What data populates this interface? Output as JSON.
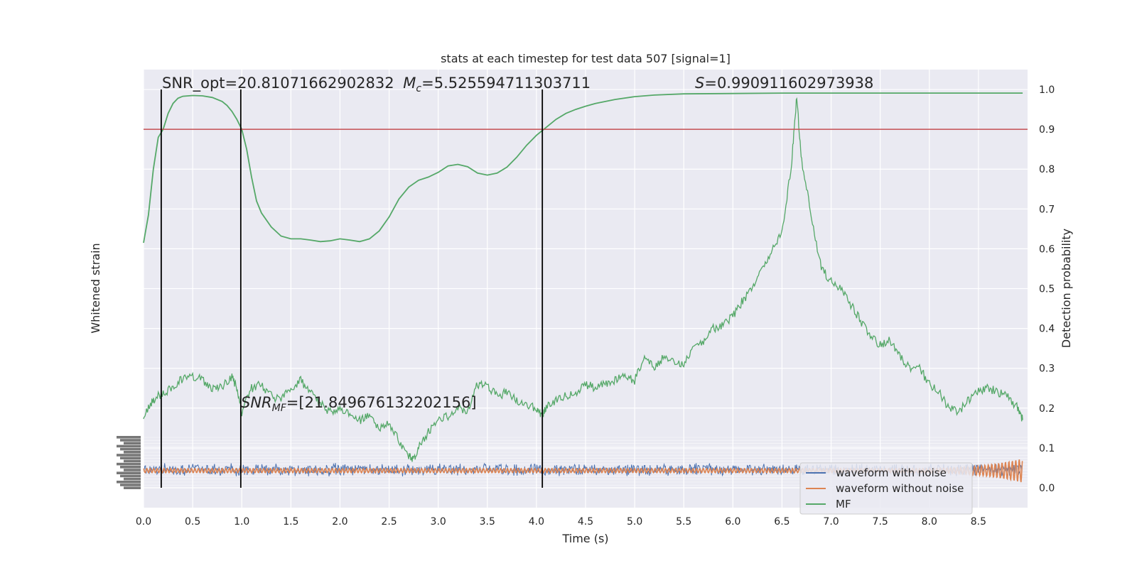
{
  "chart_data": {
    "type": "line",
    "title": "stats at each timestep for test data 507 [signal=1]",
    "xlabel": "Time (s)",
    "ylabel_left": "Whitened strain",
    "ylabel_right": "Detection probability",
    "xlim": [
      0.0,
      9.0
    ],
    "ylim_right": [
      -0.05,
      1.05
    ],
    "x_ticks": [
      "0.0",
      "0.5",
      "1.0",
      "1.5",
      "2.0",
      "2.5",
      "3.0",
      "3.5",
      "4.0",
      "4.5",
      "5.0",
      "5.5",
      "6.0",
      "6.5",
      "7.0",
      "7.5",
      "8.0",
      "8.5"
    ],
    "y_ticks_right": [
      "0.0",
      "0.1",
      "0.2",
      "0.3",
      "0.4",
      "0.5",
      "0.6",
      "0.7",
      "0.8",
      "0.9",
      "1.0"
    ],
    "threshold": 0.9,
    "vertical_lines_x": [
      0.18,
      0.99,
      4.06
    ],
    "annotations": {
      "snr_opt": "SNR_opt=20.81071662902832",
      "mc_prefix": "M",
      "mc_sub": "c",
      "mc_value": "=5.525594711303711",
      "s_prefix": "S",
      "s_value": "=0.990911602973938",
      "snr_mf_prefix": "SNR",
      "snr_mf_sub": "MF",
      "snr_mf_value": "=[21.849676132202156]"
    },
    "legend": {
      "placement": "lower-right",
      "entries": [
        "waveform with noise",
        "waveform without noise",
        "MF"
      ]
    },
    "colors": {
      "noise": "#4c72b0",
      "clean": "#dd8452",
      "mf": "#55a868",
      "threshold": "#c44e52",
      "vline": "#000000",
      "axes_bg": "#eaeaf2",
      "grid": "#ffffff"
    },
    "series": [
      {
        "name": "MF",
        "role": "detection-probability",
        "x": [
          0.0,
          0.05,
          0.1,
          0.15,
          0.2,
          0.25,
          0.3,
          0.35,
          0.4,
          0.5,
          0.6,
          0.7,
          0.8,
          0.85,
          0.9,
          0.95,
          1.0,
          1.05,
          1.1,
          1.15,
          1.2,
          1.3,
          1.4,
          1.5,
          1.6,
          1.7,
          1.8,
          1.9,
          2.0,
          2.1,
          2.2,
          2.3,
          2.4,
          2.5,
          2.6,
          2.7,
          2.8,
          2.9,
          3.0,
          3.1,
          3.2,
          3.3,
          3.4,
          3.5,
          3.6,
          3.7,
          3.8,
          3.9,
          4.0,
          4.1,
          4.2,
          4.3,
          4.4,
          4.5,
          4.6,
          4.8,
          5.0,
          5.2,
          5.5,
          6.0,
          6.5,
          7.0,
          8.0,
          8.95
        ],
        "values": [
          0.615,
          0.685,
          0.8,
          0.88,
          0.9,
          0.94,
          0.965,
          0.978,
          0.983,
          0.985,
          0.984,
          0.98,
          0.97,
          0.96,
          0.945,
          0.925,
          0.9,
          0.85,
          0.78,
          0.72,
          0.69,
          0.655,
          0.632,
          0.625,
          0.625,
          0.622,
          0.618,
          0.62,
          0.625,
          0.622,
          0.618,
          0.625,
          0.645,
          0.68,
          0.725,
          0.755,
          0.772,
          0.78,
          0.792,
          0.808,
          0.812,
          0.806,
          0.79,
          0.785,
          0.79,
          0.805,
          0.83,
          0.86,
          0.885,
          0.905,
          0.925,
          0.94,
          0.95,
          0.958,
          0.965,
          0.975,
          0.982,
          0.986,
          0.989,
          0.99,
          0.991,
          0.991,
          0.991,
          0.991
        ]
      },
      {
        "name": "MF",
        "role": "matched-filter-snr-trace",
        "x": [
          0.0,
          0.05,
          0.1,
          0.2,
          0.3,
          0.4,
          0.5,
          0.6,
          0.7,
          0.8,
          0.9,
          0.95,
          1.0,
          1.1,
          1.2,
          1.3,
          1.4,
          1.5,
          1.6,
          1.7,
          1.8,
          1.9,
          2.0,
          2.1,
          2.2,
          2.3,
          2.4,
          2.5,
          2.6,
          2.7,
          2.75,
          2.8,
          2.9,
          3.0,
          3.1,
          3.2,
          3.3,
          3.4,
          3.5,
          3.6,
          3.7,
          3.8,
          3.9,
          4.0,
          4.05,
          4.1,
          4.2,
          4.3,
          4.4,
          4.5,
          4.6,
          4.7,
          4.8,
          4.9,
          5.0,
          5.1,
          5.2,
          5.3,
          5.4,
          5.5,
          5.6,
          5.7,
          5.8,
          5.9,
          6.0,
          6.1,
          6.2,
          6.3,
          6.4,
          6.5,
          6.6,
          6.65,
          6.7,
          6.8,
          6.9,
          7.0,
          7.1,
          7.2,
          7.3,
          7.4,
          7.5,
          7.6,
          7.7,
          7.8,
          7.9,
          8.0,
          8.1,
          8.2,
          8.3,
          8.4,
          8.5,
          8.6,
          8.7,
          8.8,
          8.9,
          8.95
        ],
        "values": [
          0.17,
          0.2,
          0.22,
          0.24,
          0.25,
          0.275,
          0.28,
          0.27,
          0.25,
          0.255,
          0.28,
          0.25,
          0.19,
          0.25,
          0.26,
          0.23,
          0.22,
          0.25,
          0.27,
          0.24,
          0.21,
          0.19,
          0.2,
          0.18,
          0.17,
          0.18,
          0.15,
          0.16,
          0.12,
          0.08,
          0.07,
          0.1,
          0.14,
          0.17,
          0.18,
          0.2,
          0.19,
          0.26,
          0.255,
          0.23,
          0.24,
          0.22,
          0.21,
          0.2,
          0.18,
          0.2,
          0.22,
          0.23,
          0.24,
          0.26,
          0.25,
          0.26,
          0.27,
          0.28,
          0.27,
          0.33,
          0.3,
          0.33,
          0.32,
          0.31,
          0.35,
          0.37,
          0.4,
          0.41,
          0.43,
          0.47,
          0.5,
          0.55,
          0.6,
          0.64,
          0.82,
          0.98,
          0.82,
          0.68,
          0.55,
          0.52,
          0.5,
          0.46,
          0.42,
          0.38,
          0.36,
          0.37,
          0.33,
          0.3,
          0.3,
          0.26,
          0.24,
          0.2,
          0.19,
          0.22,
          0.24,
          0.25,
          0.24,
          0.23,
          0.2,
          0.17
        ]
      },
      {
        "name": "waveform with noise",
        "role": "whitened-strain",
        "x": [
          0.0,
          8.95
        ],
        "values": [
          0.045,
          0.045
        ],
        "spread": 0.03
      },
      {
        "name": "waveform without noise",
        "role": "whitened-strain",
        "x": [
          0.0,
          8.95
        ],
        "values": [
          0.043,
          0.043
        ],
        "spread": 0.005
      }
    ]
  }
}
